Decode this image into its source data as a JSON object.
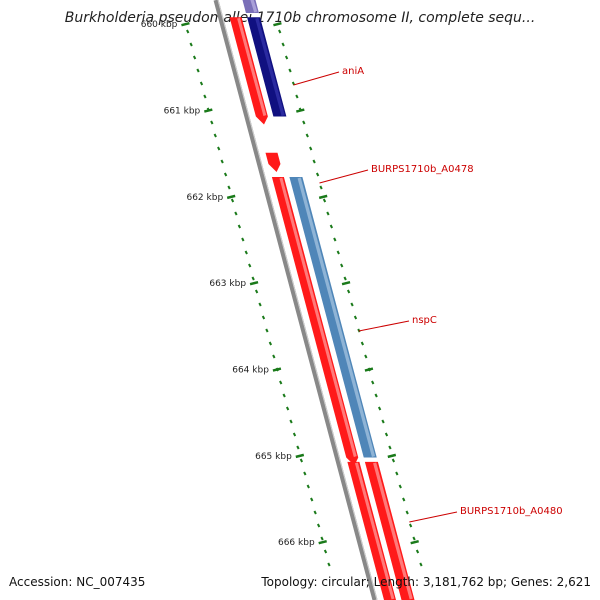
{
  "title": "Burkholderia pseudomallei 1710b chromosome II, complete sequ...",
  "footer": {
    "accession": "Accession: NC_007435",
    "summary": "Topology: circular; Length: 3,181,762 bp; Genes: 2,621"
  },
  "scale": {
    "unit": "kbp",
    "start_kbp": 659.65,
    "end_kbp": 666.6,
    "tick_labels": [
      "660 kbp",
      "661 kbp",
      "662 kbp",
      "663 kbp",
      "664 kbp",
      "665 kbp",
      "666 kbp"
    ],
    "tick_values_kbp": [
      660,
      661,
      662,
      663,
      664,
      665,
      666
    ]
  },
  "features": [
    {
      "label": "",
      "type": "CDS",
      "strand": "forward",
      "start_kbp": 659.6,
      "end_kbp": 659.8
    },
    {
      "label": "aniA",
      "type": "CDS",
      "strand": "forward",
      "start_kbp": 659.85,
      "end_kbp": 661.0
    },
    {
      "label": "BURPS1710b_A0478",
      "type": "CDS",
      "strand": "forward",
      "start_kbp": 661.42,
      "end_kbp": 661.55
    },
    {
      "label": "nspC",
      "type": "CDS",
      "strand": "forward",
      "start_kbp": 661.7,
      "end_kbp": 664.95
    },
    {
      "label": "BURPS1710b_A0480",
      "type": "CDS",
      "strand": "forward",
      "start_kbp": 665.0,
      "end_kbp": 666.6
    }
  ],
  "colors": {
    "backbone": "#888888",
    "cds_red": "#ff1a1a",
    "cds_red_light": "#ff7a7a",
    "gene_navy": "#101080",
    "gene_purple": "#7a6fb8",
    "gene_steel": "#4f86b8",
    "gene_steel_light": "#8fb4d6",
    "tick_green": "#1a7a1a",
    "label_red": "#cc0000",
    "label_dark": "#222222"
  }
}
